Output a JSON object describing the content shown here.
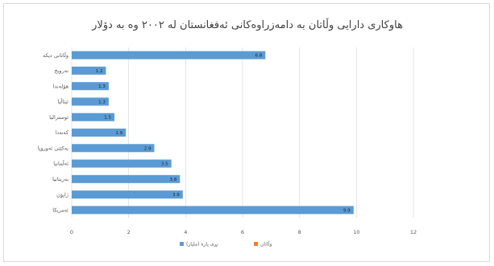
{
  "chart_data": {
    "type": "bar",
    "orientation": "horizontal",
    "title": "هاوکاری دارایی وڵاتان  بە دامەزراوەکانی ئەفغانستان لە ٢٠٠٢ وە بە دۆلار",
    "categories": [
      "وڵاتانی دیکە",
      "نەرویج",
      "هۆلەندا",
      "ئیتاڵیا",
      "ئوسترالیا",
      "کەنەدا",
      "یەکێتی ئەوروپا",
      "ئەڵمانیا",
      "بەریتانیا",
      "ژاپۆن",
      "ئەمریکا"
    ],
    "series": [
      {
        "name": "بڕی پارە (ملیار)",
        "values": [
          6.8,
          1.2,
          1.3,
          1.3,
          1.5,
          1.9,
          2.9,
          3.5,
          3.8,
          3.9,
          9.9
        ],
        "color": "#5b9bd5"
      }
    ],
    "data_labels": [
      "6.8",
      "1.2",
      "1.3",
      "1.3",
      "1.5",
      "1.9",
      "2.9",
      "3.5",
      "3.8",
      "3.9",
      "9.9"
    ],
    "xlim": [
      0,
      12
    ],
    "x_ticks": [
      "0",
      "2",
      "4",
      "6",
      "8",
      "10",
      "12"
    ],
    "xlabel": "",
    "ylabel": "",
    "grid": true,
    "legend": {
      "position": "bottom",
      "entries": [
        {
          "label": "بڕی پارە (ملیار)",
          "color": "#5b9bd5"
        },
        {
          "label": "وڵاتان",
          "color": "#ed7d31"
        }
      ]
    }
  }
}
